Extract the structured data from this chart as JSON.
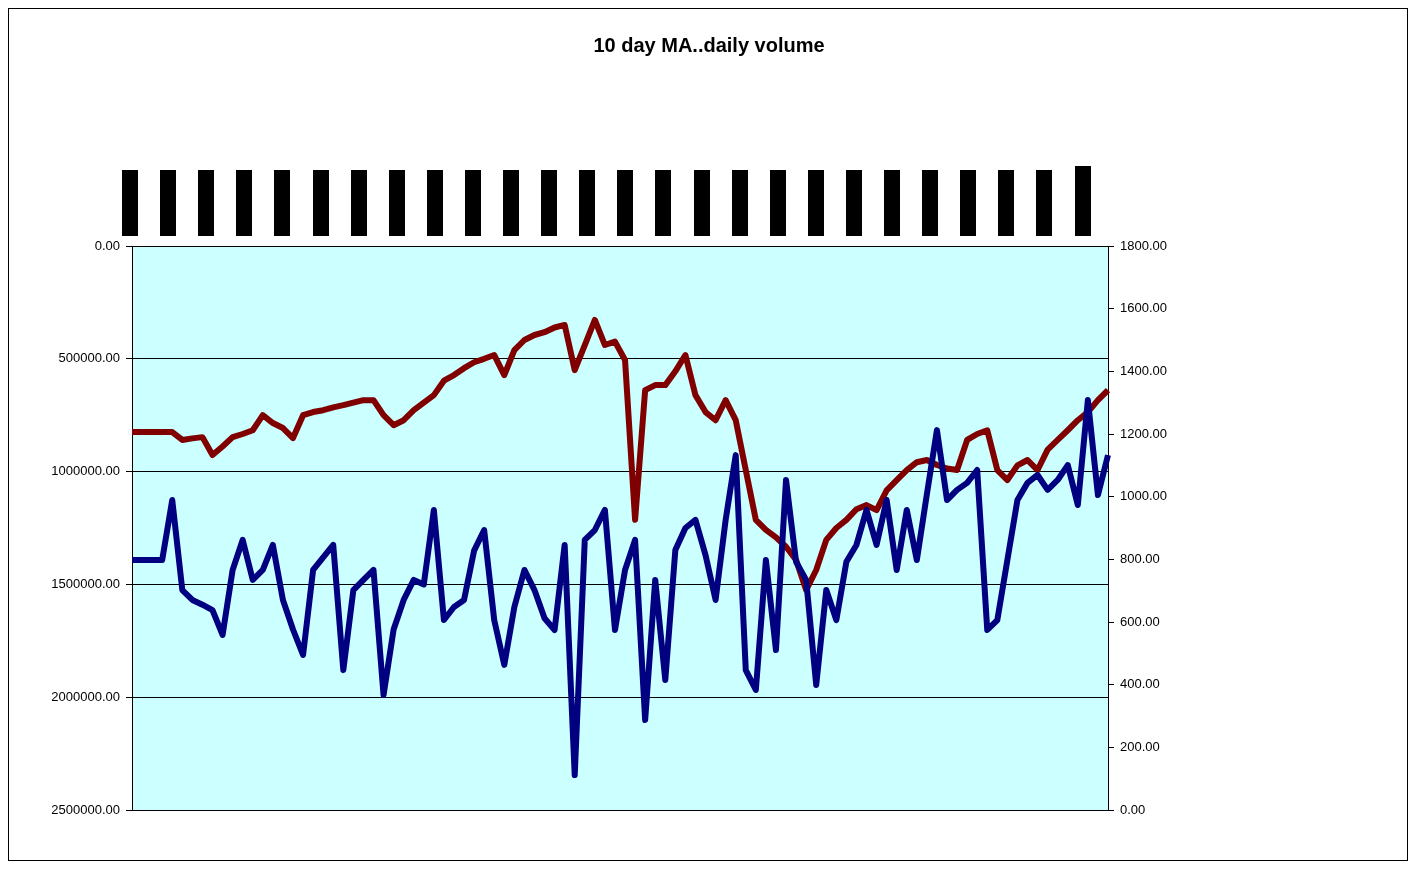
{
  "chart_data": {
    "type": "line",
    "title": "10 day MA..daily volume",
    "tick_labels": "y",
    "grid": "y",
    "legend": false,
    "marker": "none",
    "line_style": "solid",
    "categories": [
      null,
      null,
      null,
      null,
      null,
      null,
      null,
      null,
      null,
      null,
      null,
      null,
      null,
      null,
      null,
      null,
      null,
      null,
      null,
      null,
      null,
      null,
      null,
      null,
      null,
      null,
      null,
      null,
      null,
      null,
      null,
      null,
      null,
      null,
      null,
      null,
      null,
      null,
      null,
      null,
      null,
      null,
      null,
      null,
      null,
      null,
      null,
      null,
      null,
      null,
      null,
      null,
      null,
      null,
      null,
      null,
      null,
      null,
      null,
      null,
      null,
      null,
      null,
      null,
      null,
      null,
      null,
      null,
      null,
      null,
      null,
      null,
      null,
      null,
      null,
      null,
      null,
      null,
      null,
      null,
      null,
      null,
      null,
      null,
      null,
      null,
      null,
      null,
      null,
      null,
      null,
      null,
      null,
      null,
      null,
      null,
      null,
      null
    ],
    "ylim": [
      2500000,
      0
    ],
    "yticks": [
      {
        "value": 0,
        "label": "0.00"
      },
      {
        "value": 500000,
        "label": "500000.00"
      },
      {
        "value": 1000000,
        "label": "1000000.00"
      },
      {
        "value": 1500000,
        "label": "1500000.00"
      },
      {
        "value": 2000000,
        "label": "2000000.00"
      },
      {
        "value": 2500000,
        "label": "2500000.00"
      }
    ],
    "y2lim": [
      0,
      1800
    ],
    "y2ticks": [
      {
        "value": 0,
        "label": "0.00"
      },
      {
        "value": 200,
        "label": "200.00"
      },
      {
        "value": 400,
        "label": "400.00"
      },
      {
        "value": 600,
        "label": "600.00"
      },
      {
        "value": 800,
        "label": "800.00"
      },
      {
        "value": 1000,
        "label": "1000.00"
      },
      {
        "value": 1200,
        "label": "1200.00"
      },
      {
        "value": 1400,
        "label": "1400.00"
      },
      {
        "value": 1600,
        "label": "1600.00"
      },
      {
        "value": 1800,
        "label": "1800.00"
      }
    ],
    "series": [
      {
        "color": "#000080",
        "values": [
          1392000,
          1392000,
          1392000,
          1392000,
          1126000,
          1525000,
          1569000,
          1590000,
          1614000,
          1724000,
          1436000,
          1303000,
          1480000,
          1436000,
          1325000,
          1569000,
          1700000,
          1813000,
          1436000,
          1380000,
          1325000,
          1880000,
          1525000,
          1480000,
          1436000,
          1990000,
          1700000,
          1569000,
          1480000,
          1500000,
          1170000,
          1658000,
          1600000,
          1569000,
          1350000,
          1259000,
          1658000,
          1857000,
          1600000,
          1436000,
          1525000,
          1650000,
          1702000,
          1325000,
          2345000,
          1303000,
          1259000,
          1170000,
          1702000,
          1436000,
          1303000,
          2101000,
          1480000,
          1924000,
          1348000,
          1250000,
          1214000,
          1370000,
          1569000,
          1214000,
          927000,
          1880000,
          1968000,
          1392000,
          1791000,
          1037000,
          1400000,
          1480000,
          1946000,
          1525000,
          1658000,
          1400000,
          1325000,
          1170000,
          1325000,
          1126000,
          1436000,
          1170000,
          1392000,
          1100000,
          816000,
          1126000,
          1081000,
          1050000,
          993000,
          1702000,
          1658000,
          1392000,
          1126000,
          1050000,
          1015000,
          1081000,
          1037000,
          971000,
          1148000,
          683000,
          1104000,
          927000
        ]
      },
      {
        "color": "#800000",
        "axis": "y2",
        "values": [
          1206,
          1206,
          1206,
          1206,
          1206,
          1181,
          1186,
          1190,
          1133,
          1160,
          1190,
          1200,
          1212,
          1260,
          1235,
          1219,
          1187,
          1260,
          1270,
          1276,
          1285,
          1292,
          1300,
          1308,
          1308,
          1260,
          1228,
          1244,
          1276,
          1300,
          1324,
          1370,
          1388,
          1410,
          1429,
          1440,
          1452,
          1388,
          1468,
          1500,
          1516,
          1525,
          1540,
          1548,
          1404,
          1484,
          1564,
          1484,
          1495,
          1436,
          926,
          1340,
          1356,
          1356,
          1400,
          1452,
          1324,
          1270,
          1244,
          1308,
          1244,
          1085,
          926,
          894,
          870,
          840,
          798,
          702,
          766,
          862,
          900,
          926,
          960,
          973,
          957,
          1020,
          1053,
          1085,
          1110,
          1117,
          1101,
          1090,
          1085,
          1181,
          1200,
          1212,
          1085,
          1053,
          1100,
          1117,
          1085,
          1150,
          1181,
          1212,
          1244,
          1270,
          1308,
          1340
        ]
      }
    ]
  }
}
